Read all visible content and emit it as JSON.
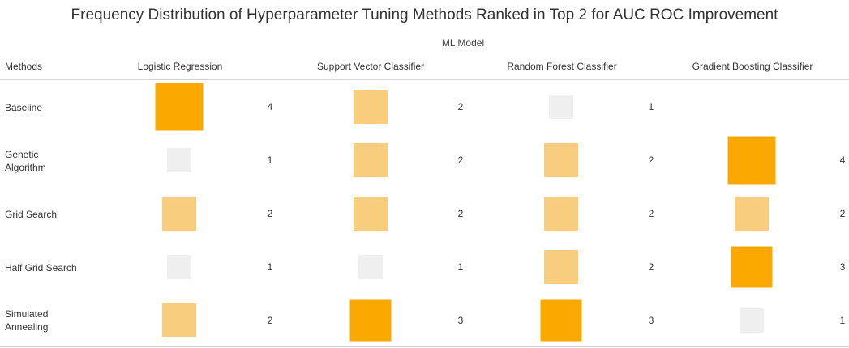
{
  "chart_data": {
    "type": "heatmap",
    "title": "Frequency Distribution of Hyperparameter Tuning Methods Ranked in Top 2 for AUC ROC Improvement",
    "column_group_label": "ML Model",
    "row_header": "Methods",
    "columns": [
      "Logistic Regression",
      "Support Vector Classifier",
      "Random Forest Classifier",
      "Gradient Boosting Classifier"
    ],
    "rows": [
      {
        "label": "Baseline",
        "values": [
          4,
          2,
          1,
          null
        ]
      },
      {
        "label": "Genetic\nAlgorithm",
        "values": [
          1,
          2,
          2,
          4
        ]
      },
      {
        "label": "Grid Search",
        "values": [
          2,
          2,
          2,
          2
        ]
      },
      {
        "label": "Half Grid Search",
        "values": [
          1,
          1,
          2,
          3
        ]
      },
      {
        "label": "Simulated\nAnnealing",
        "values": [
          2,
          3,
          3,
          1
        ]
      }
    ],
    "color_scale": {
      "1": "#efefef",
      "2": "#f8cd7e",
      "3": "#fba800",
      "4": "#fba800"
    }
  }
}
